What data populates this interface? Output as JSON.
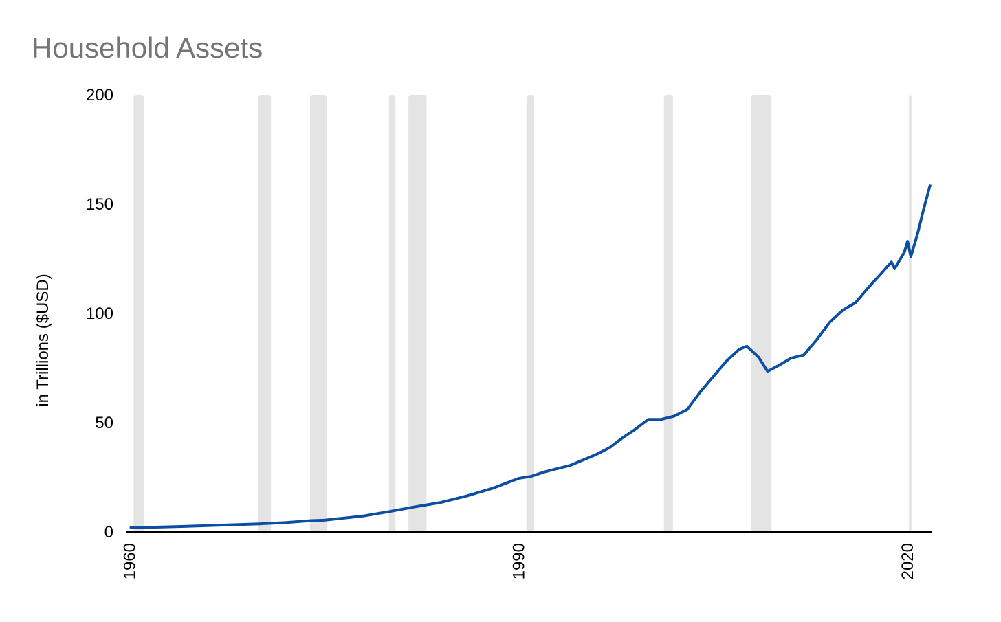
{
  "chart_data": {
    "type": "line",
    "title": "Household Assets",
    "y_label": "in Trillions ($USD)",
    "x": [
      1960,
      1962,
      1964,
      1966,
      1968,
      1970,
      1972,
      1974,
      1975,
      1976,
      1978,
      1980,
      1982,
      1984,
      1986,
      1988,
      1990,
      1991,
      1992,
      1994,
      1996,
      1997,
      1998,
      1999,
      2000,
      2001,
      2002,
      2003,
      2004,
      2005,
      2006,
      2007,
      2007.6,
      2008.5,
      2009.2,
      2010,
      2011,
      2012,
      2013,
      2014,
      2015,
      2016,
      2017,
      2018,
      2018.75,
      2019,
      2019.75,
      2020,
      2020.25,
      2020.75,
      2021,
      2021.25,
      2021.75
    ],
    "series": [
      {
        "name": "Household Assets",
        "color": "#0b4ea2",
        "values": [
          2.0,
          2.2,
          2.5,
          2.9,
          3.3,
          3.7,
          4.3,
          5.2,
          5.4,
          6.0,
          7.3,
          9.3,
          11.5,
          13.5,
          16.5,
          20.0,
          24.5,
          25.5,
          27.5,
          30.5,
          35.5,
          38.5,
          43,
          47,
          51.5,
          51.5,
          53,
          56,
          64,
          71,
          78,
          83.5,
          85,
          80,
          73.5,
          76,
          79.5,
          81,
          88,
          96,
          101.5,
          105,
          112,
          118.5,
          123.5,
          120.5,
          128,
          133,
          126,
          136,
          142,
          148,
          159
        ]
      }
    ],
    "recessions": [
      [
        1960.3,
        1961.1
      ],
      [
        1969.9,
        1970.9
      ],
      [
        1973.9,
        1975.2
      ],
      [
        1980.0,
        1980.5
      ],
      [
        1981.5,
        1982.9
      ],
      [
        1990.6,
        1991.2
      ],
      [
        2001.2,
        2001.9
      ],
      [
        2007.9,
        2009.5
      ],
      [
        2020.1,
        2020.3
      ]
    ],
    "recession_color": "#e4e4e4",
    "xlim": [
      1959.7,
      2021.9
    ],
    "xticks": [
      1960,
      1990,
      2020
    ],
    "ylim": [
      0,
      200
    ],
    "yticks": [
      0,
      50,
      100,
      150,
      200
    ],
    "grid": false
  }
}
